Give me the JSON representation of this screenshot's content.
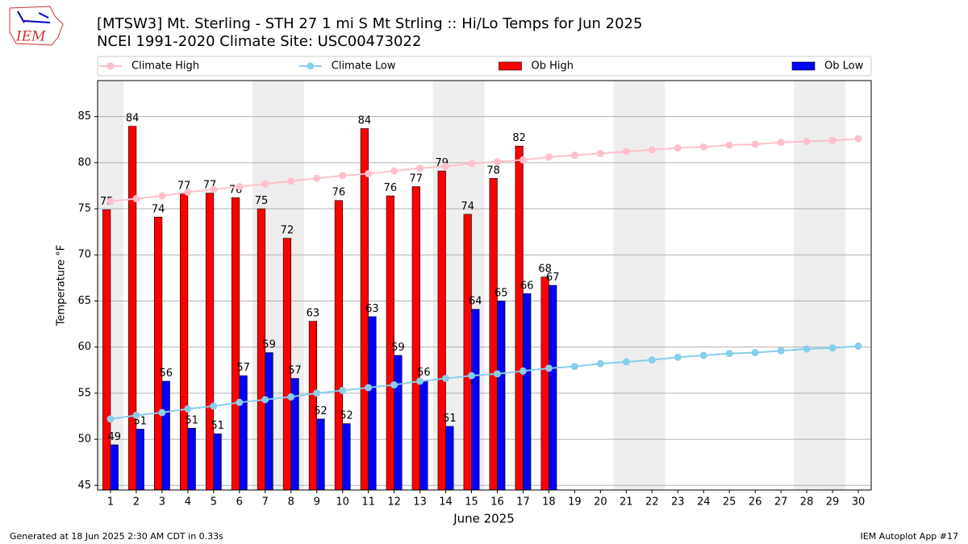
{
  "chart_data": {
    "type": "bar",
    "title": "[MTSW3] Mt. Sterling - STH 27 1 mi S Mt Strling :: Hi/Lo Temps for Jun 2025",
    "subtitle": "NCEI 1991-2020 Climate Site: USC00473022",
    "logo_text": "IEM",
    "x_label": "June 2025",
    "y_label": "Temperature °F",
    "footer_left": "Generated at 18 Jun 2025 2:30 AM CDT in 0.33s",
    "footer_right": "IEM Autoplot App #17",
    "legend": "top",
    "grid": true,
    "xlim": [
      0.5,
      30.5
    ],
    "ylim": [
      44.5,
      88.9
    ],
    "xticks": [
      1,
      2,
      3,
      4,
      5,
      6,
      7,
      8,
      9,
      10,
      11,
      12,
      13,
      14,
      15,
      16,
      17,
      18,
      19,
      20,
      21,
      22,
      23,
      24,
      25,
      26,
      27,
      28,
      29,
      30
    ],
    "yticks": [
      45,
      50,
      55,
      60,
      65,
      70,
      75,
      80,
      85
    ],
    "shaded_x": [
      1,
      7,
      8,
      14,
      15,
      21,
      22,
      28,
      29
    ],
    "shade_color": "#eeeeee",
    "x": [
      1,
      2,
      3,
      4,
      5,
      6,
      7,
      8,
      9,
      10,
      11,
      12,
      13,
      14,
      15,
      16,
      17,
      18,
      19,
      20,
      21,
      22,
      23,
      24,
      25,
      26,
      27,
      28,
      29,
      30
    ],
    "series": [
      {
        "name": "Climate High",
        "type": "line",
        "color": "#ffc0cb",
        "values": [
          75.8,
          76.1,
          76.4,
          76.8,
          77.1,
          77.4,
          77.7,
          78.0,
          78.3,
          78.6,
          78.8,
          79.1,
          79.4,
          79.6,
          79.9,
          80.1,
          80.3,
          80.6,
          80.8,
          81.0,
          81.2,
          81.4,
          81.6,
          81.7,
          81.9,
          82.0,
          82.2,
          82.3,
          82.4,
          82.6
        ]
      },
      {
        "name": "Climate Low",
        "type": "line",
        "color": "#87ceeb",
        "values": [
          52.2,
          52.6,
          52.9,
          53.3,
          53.6,
          54.0,
          54.3,
          54.6,
          55.0,
          55.3,
          55.6,
          55.9,
          56.3,
          56.6,
          56.9,
          57.1,
          57.4,
          57.7,
          57.9,
          58.2,
          58.4,
          58.6,
          58.9,
          59.1,
          59.3,
          59.4,
          59.6,
          59.8,
          59.9,
          60.1
        ]
      },
      {
        "name": "Ob High",
        "type": "bar",
        "color": "#ff0000",
        "values": [
          74.9,
          83.95,
          74.1,
          76.6,
          76.7,
          76.2,
          75.0,
          71.8,
          62.8,
          75.9,
          83.7,
          76.4,
          77.4,
          79.1,
          74.4,
          78.3,
          81.8,
          67.6,
          null,
          null,
          null,
          null,
          null,
          null,
          null,
          null,
          null,
          null,
          null,
          null
        ],
        "value_labels": [
          "75",
          "84",
          "74",
          "77",
          "77",
          "76",
          "75",
          "72",
          "63",
          "76",
          "84",
          "76",
          "77",
          "79",
          "74",
          "78",
          "82",
          "68",
          null,
          null,
          null,
          null,
          null,
          null,
          null,
          null,
          null,
          null,
          null,
          null
        ]
      },
      {
        "name": "Ob Low",
        "type": "bar",
        "color": "#0000ff",
        "values": [
          49.4,
          51.1,
          56.3,
          51.2,
          50.6,
          56.9,
          59.4,
          56.6,
          52.2,
          51.7,
          63.3,
          59.1,
          56.4,
          51.4,
          64.1,
          65.0,
          65.8,
          66.7,
          null,
          null,
          null,
          null,
          null,
          null,
          null,
          null,
          null,
          null,
          null,
          null
        ],
        "value_labels": [
          "49",
          "51",
          "56",
          "51",
          "51",
          "57",
          "59",
          "57",
          "52",
          "52",
          "63",
          "59",
          "56",
          "51",
          "64",
          "65",
          "66",
          "67",
          null,
          null,
          null,
          null,
          null,
          null,
          null,
          null,
          null,
          null,
          null,
          null
        ]
      }
    ]
  }
}
